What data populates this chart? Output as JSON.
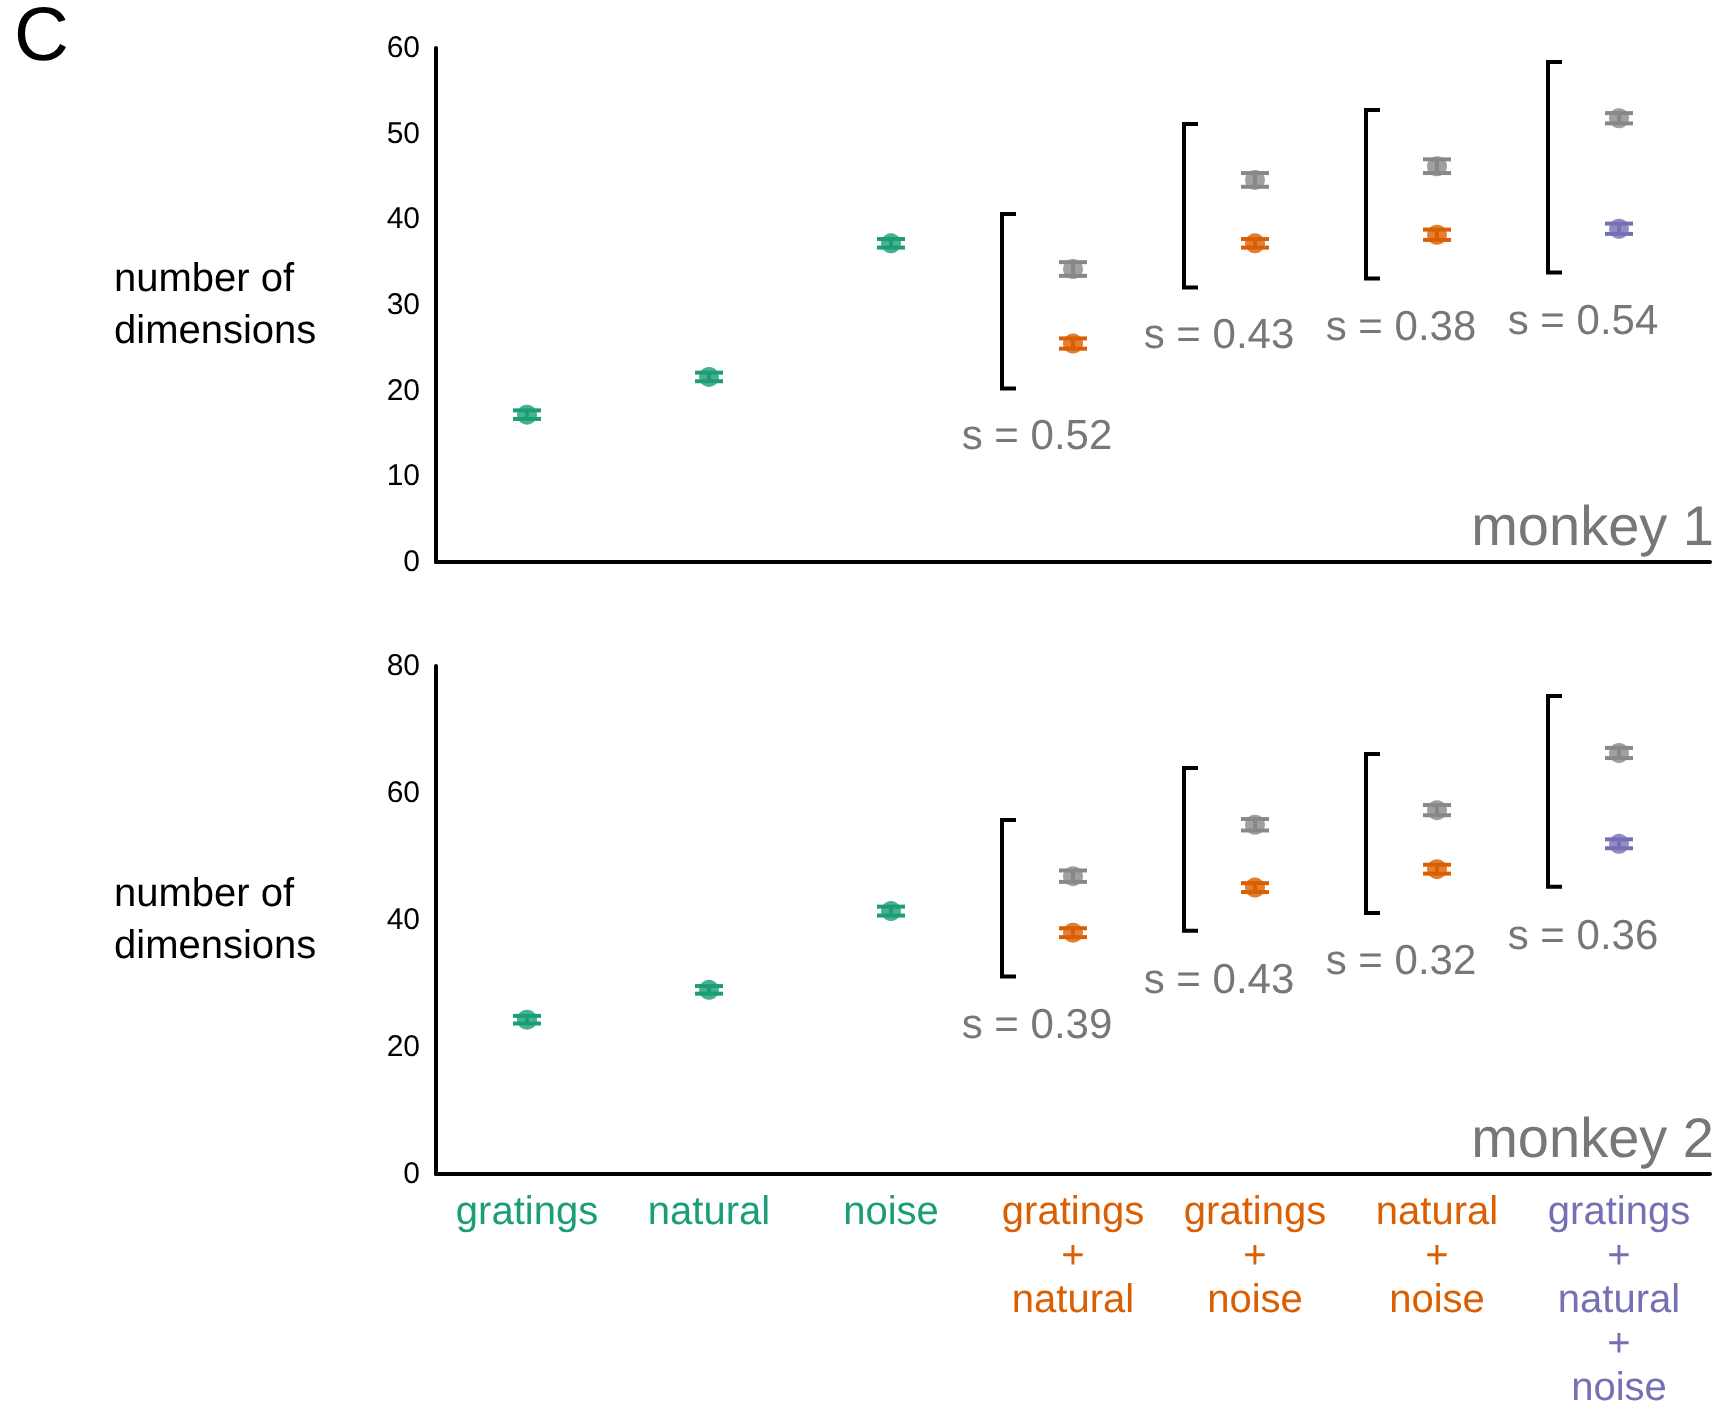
{
  "chart_data": [
    {
      "type": "scatter",
      "title": "C",
      "ylabel": "number of dimensions",
      "categories": [
        "gratings",
        "natural",
        "noise",
        "gratings\n+\nnatural",
        "gratings\n+\nnoise",
        "natural\n+\nnoise",
        "gratings\n+\nnatural\n+\nnoise"
      ],
      "series": [
        {
          "colors": [
            "#1b9e77",
            "#1b9e77",
            "#1b9e77",
            "#d95f02",
            "#d95f02",
            "#d95f02",
            "#7570b3"
          ],
          "values": [
            17.2,
            21.6,
            37.2,
            25.5,
            37.2,
            38.2,
            38.9
          ],
          "errors": [
            0.5,
            0.5,
            0.5,
            0.6,
            0.5,
            0.6,
            0.6
          ]
        },
        {
          "color": "#888888",
          "values": [
            null,
            null,
            null,
            34.2,
            44.6,
            46.2,
            51.8
          ],
          "errors": [
            null,
            null,
            null,
            0.8,
            0.8,
            0.8,
            0.6
          ]
        }
      ],
      "ylim": [
        0,
        60
      ],
      "yticks": [
        0,
        10,
        20,
        30,
        40,
        50,
        60
      ],
      "grid": false,
      "marker": "circle",
      "tick_labels": "y",
      "annotations": [
        "s = 0.52",
        "s = 0.43",
        "s = 0.38",
        "s = 0.54",
        "monkey 1"
      ]
    },
    {
      "type": "scatter",
      "ylabel": "number of dimensions",
      "categories": [
        "gratings",
        "natural",
        "noise",
        "gratings\n+\nnatural",
        "gratings\n+\nnoise",
        "natural\n+\nnoise",
        "gratings\n+\nnatural\n+\nnoise"
      ],
      "series": [
        {
          "colors": [
            "#1b9e77",
            "#1b9e77",
            "#1b9e77",
            "#d95f02",
            "#d95f02",
            "#d95f02",
            "#7570b3"
          ],
          "values": [
            24.3,
            29.0,
            41.4,
            38.0,
            45.1,
            48.0,
            52.0
          ],
          "errors": [
            0.6,
            0.6,
            0.7,
            0.7,
            0.7,
            0.7,
            0.7
          ]
        },
        {
          "color": "#888888",
          "values": [
            null,
            null,
            null,
            46.9,
            55.0,
            57.3,
            66.3
          ],
          "errors": [
            null,
            null,
            null,
            0.9,
            0.9,
            0.8,
            0.8
          ]
        }
      ],
      "ylim": [
        0,
        80
      ],
      "yticks": [
        0,
        20,
        40,
        60,
        80
      ],
      "grid": false,
      "marker": "circle",
      "annotations": [
        "s = 0.39",
        "s = 0.43",
        "s = 0.32",
        "s = 0.36",
        "monkey 2"
      ]
    }
  ]
}
